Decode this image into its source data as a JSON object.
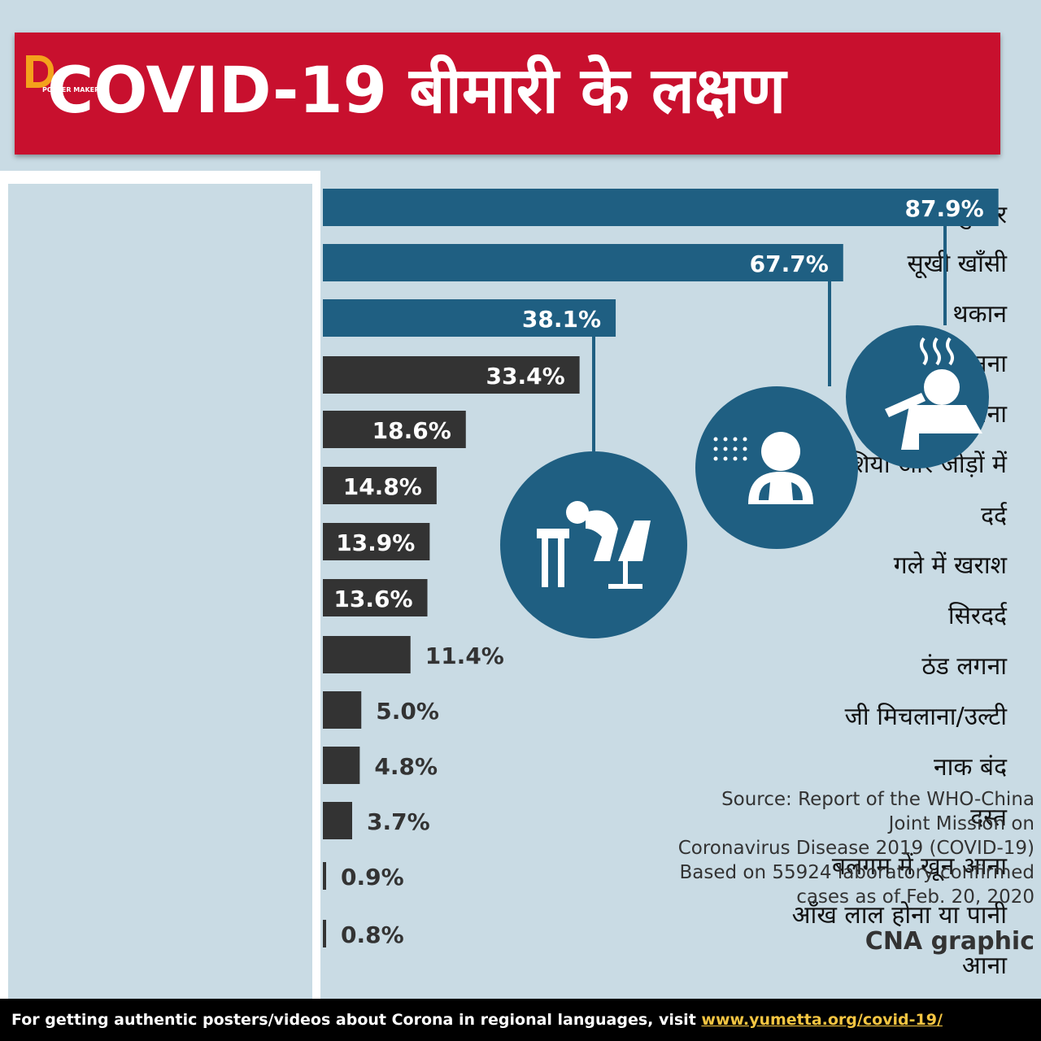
{
  "header": {
    "title": "COVID-19 बीमारी के लक्षण",
    "logo_text": "POSTER MAKER"
  },
  "chart_data": {
    "type": "bar",
    "orientation": "horizontal",
    "categories": [
      "बुखार",
      "सूखी खाँसी",
      "थकान",
      "बलगम बनना",
      "सांस फूलना",
      "मांसपेशियों और जोड़ों में दर्द",
      "गले में खराश",
      "सिरदर्द",
      "ठंड लगना",
      "जी मिचलाना/उल्टी",
      "नाक बंद",
      "दस्त",
      "बलगम में खून आना",
      "आँख लाल होना या पानी आना"
    ],
    "values": [
      87.9,
      67.7,
      38.1,
      33.4,
      18.6,
      14.8,
      13.9,
      13.6,
      11.4,
      5.0,
      4.8,
      3.7,
      0.9,
      0.8
    ],
    "value_labels": [
      "87.9%",
      "67.7%",
      "38.1%",
      "33.4%",
      "18.6%",
      "14.8%",
      "13.9%",
      "13.6%",
      "11.4%",
      "5.0%",
      "4.8%",
      "3.7%",
      "0.9%",
      "0.8%"
    ],
    "highlight_count": 3,
    "colors": {
      "highlight": "#1f5f82",
      "other": "#333333",
      "label_on_bar": "#ffffff",
      "label_outside": "#333333"
    },
    "xlim": [
      0,
      100
    ],
    "grid": false,
    "icons": [
      "fever-person-icon",
      "dry-cough-person-icon",
      "fatigue-person-icon"
    ]
  },
  "label_lines": [
    "बुखार",
    "सूखी खाँसी",
    "थकान",
    "बलगम बनना",
    "सांस फूलना",
    "मांसपेशियों और जोड़ों में",
    "दर्द",
    "गले में खराश",
    "सिरदर्द",
    "ठंड लगना",
    "जी मिचलाना/उल्टी",
    "नाक बंद",
    "दस्त",
    "बलगम में खून आना",
    "आँख लाल होना या पानी",
    "आना"
  ],
  "source": {
    "lines": [
      "Source: Report of the WHO-China",
      "Joint Mission on",
      "Coronavirus Disease 2019 (COVID-19)",
      "Based on 55924 laboratory confirmed",
      "cases as of Feb. 20, 2020"
    ],
    "credit": "CNA graphic"
  },
  "footer": {
    "text": "For getting authentic posters/videos about Corona in regional languages, visit ",
    "link": "www.yumetta.org/covid-19/"
  }
}
